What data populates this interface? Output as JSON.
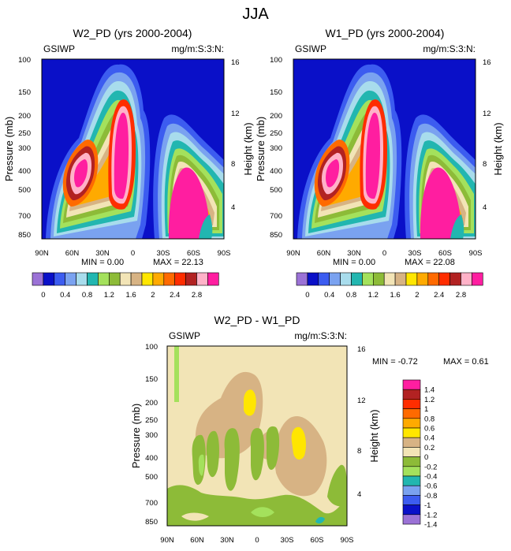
{
  "page_title": "JJA",
  "palette": [
    "#9b72d6",
    "#0a10c8",
    "#3c5cf0",
    "#7aa2f0",
    "#a8dcec",
    "#22b6b0",
    "#a4e15c",
    "#8dbb38",
    "#f2e4b6",
    "#d7b384",
    "#ffe600",
    "#ffaa00",
    "#ff6a00",
    "#ff2d00",
    "#b22222",
    "#ffb2c8",
    "#ff1ea0"
  ],
  "levels": [
    "0",
    "0.4",
    "0.8",
    "1.2",
    "1.6",
    "2",
    "2.4",
    "2.8"
  ],
  "diff_palette": [
    "#9b72d6",
    "#0a10c8",
    "#3c5cf0",
    "#7aa2f0",
    "#22b6b0",
    "#a4e15c",
    "#8dbb38",
    "#f2e4b6",
    "#d7b384",
    "#ffe600",
    "#ffaa00",
    "#ff6a00",
    "#ff2d00",
    "#b22222",
    "#ff1ea0"
  ],
  "diff_levels": [
    "1.4",
    "1.2",
    "1",
    "0.8",
    "0.6",
    "0.4",
    "0.2",
    "0",
    "-0.2",
    "-0.4",
    "-0.6",
    "-0.8",
    "-1",
    "-1.2",
    "-1.4"
  ],
  "chart_data": [
    {
      "type": "heatmap",
      "title": "W2_PD (yrs 2000-2004)",
      "left_label": "GSIWP",
      "right_label": "mg/m:S:3:N:",
      "ylabel": "Pressure (mb)",
      "y2label": "Height (km)",
      "x_ticks": [
        "90N",
        "60N",
        "30N",
        "0",
        "30S",
        "60S",
        "90S"
      ],
      "y_ticks": [
        "100",
        "150",
        "200",
        "250",
        "300",
        "400",
        "500",
        "700",
        "850"
      ],
      "y2_ticks": [
        "16",
        "12",
        "8",
        "4"
      ],
      "min_label": "MIN =   0.00",
      "max_label": "MAX =  22.13",
      "min": 0.0,
      "max": 22.13
    },
    {
      "type": "heatmap",
      "title": "W1_PD (yrs 2000-2004)",
      "left_label": "GSIWP",
      "right_label": "mg/m:S:3:N:",
      "ylabel": "Pressure (mb)",
      "y2label": "Height (km)",
      "x_ticks": [
        "90N",
        "60N",
        "30N",
        "0",
        "30S",
        "60S",
        "90S"
      ],
      "y_ticks": [
        "100",
        "150",
        "200",
        "250",
        "300",
        "400",
        "500",
        "700",
        "850"
      ],
      "y2_ticks": [
        "16",
        "12",
        "8",
        "4"
      ],
      "min_label": "MIN =   0.00",
      "max_label": "MAX =  22.08",
      "min": 0.0,
      "max": 22.08
    },
    {
      "type": "heatmap",
      "title": "W2_PD - W1_PD",
      "left_label": "GSIWP",
      "right_label": "mg/m:S:3:N:",
      "ylabel": "Pressure (mb)",
      "y2label": "Height (km)",
      "x_ticks": [
        "90N",
        "60N",
        "30N",
        "0",
        "30S",
        "60S",
        "90S"
      ],
      "y_ticks": [
        "100",
        "150",
        "200",
        "250",
        "300",
        "400",
        "500",
        "700",
        "850"
      ],
      "y2_ticks": [
        "16",
        "12",
        "8",
        "4"
      ],
      "min_label": "MIN =  -0.72",
      "max_label": "MAX =   0.61",
      "min": -0.72,
      "max": 0.61
    }
  ]
}
